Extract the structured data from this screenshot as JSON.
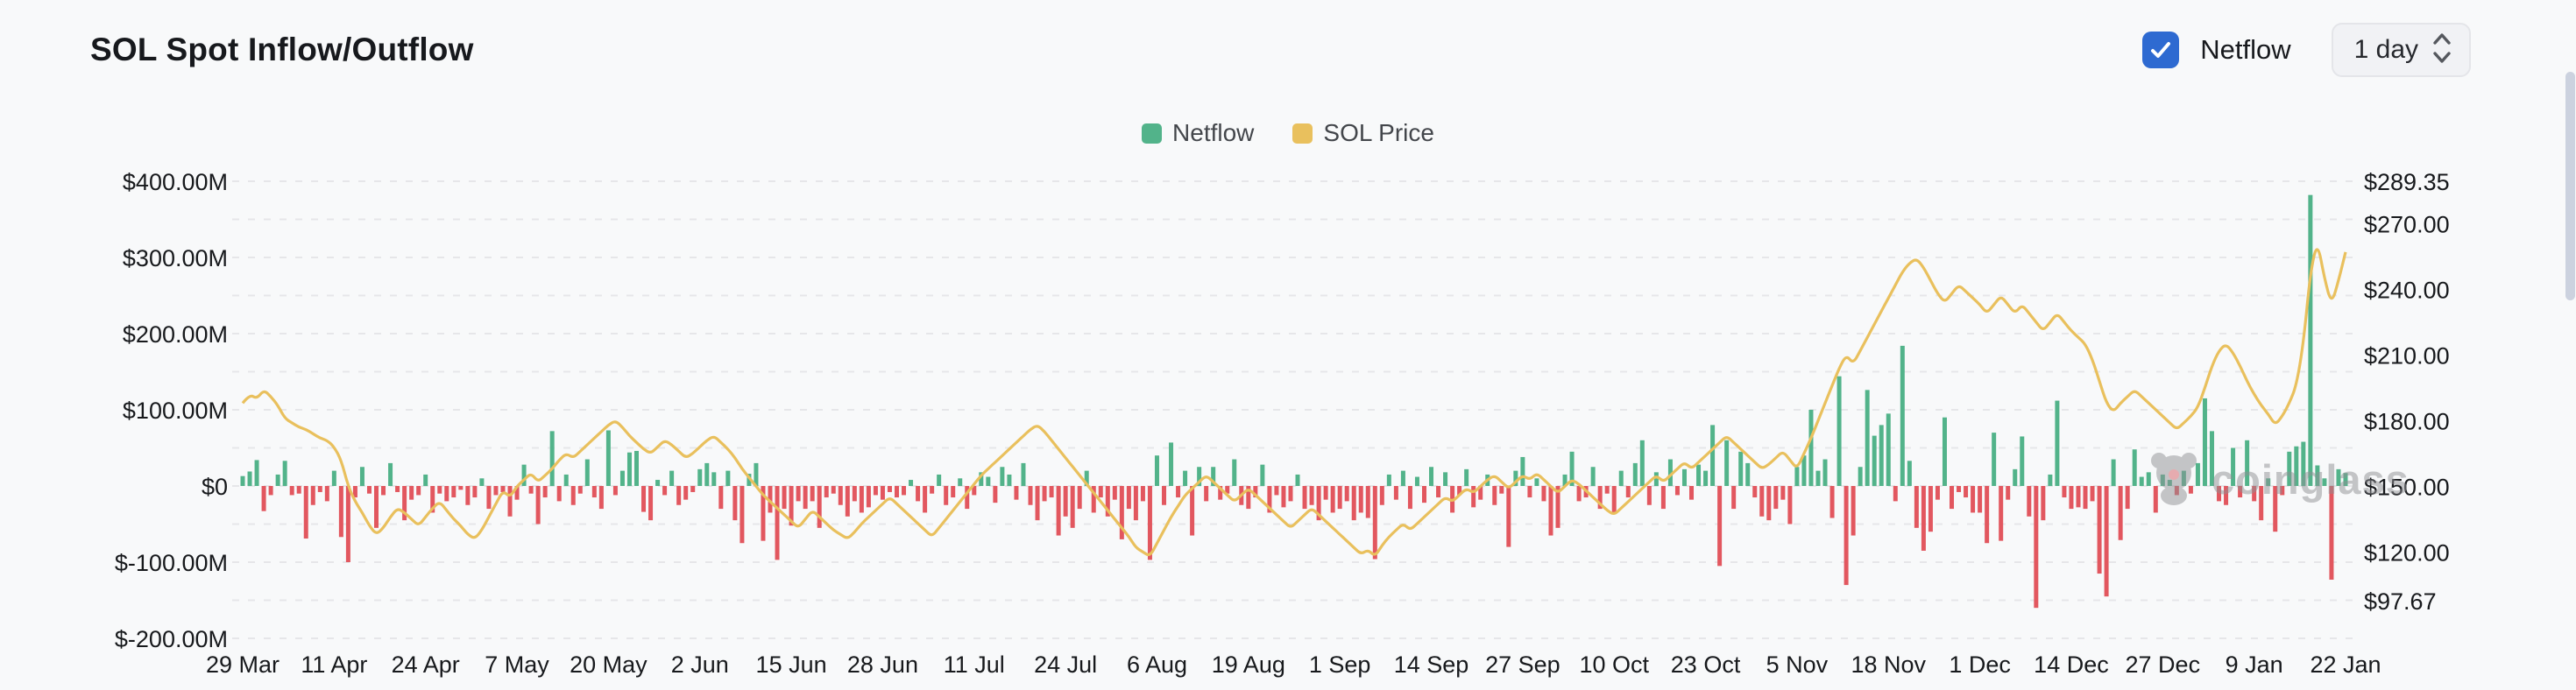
{
  "header": {
    "title": "SOL Spot Inflow/Outflow",
    "netflow_label": "Netflow",
    "netflow_checked": true,
    "interval": "1 day"
  },
  "legend": {
    "items": [
      {
        "label": "Netflow",
        "color": "#52b38a"
      },
      {
        "label": "SOL Price",
        "color": "#e9c05d"
      }
    ]
  },
  "watermark": {
    "text": "coinglass"
  },
  "colors": {
    "bar_positive": "#52b38a",
    "bar_negative": "#e2575f",
    "price_line": "#e9c05d",
    "grid": "#e6e6e9",
    "axis_text": "#17191c",
    "checkbox_blue": "#2e6ad1",
    "scroll_thumb": "#ccd2df"
  },
  "chart_data": {
    "type": "combo",
    "title": "SOL Spot Inflow/Outflow",
    "grid": "dashed-horizontal",
    "legend_position": "top-center",
    "x_tick_labels": [
      "29 Mar",
      "11 Apr",
      "24 Apr",
      "7 May",
      "20 May",
      "2 Jun",
      "15 Jun",
      "28 Jun",
      "11 Jul",
      "24 Jul",
      "6 Aug",
      "19 Aug",
      "1 Sep",
      "14 Sep",
      "27 Sep",
      "10 Oct",
      "23 Oct",
      "5 Nov",
      "18 Nov",
      "1 Dec",
      "14 Dec",
      "27 Dec",
      "9 Jan",
      "22 Jan"
    ],
    "x_tick_day_index": [
      0,
      13,
      26,
      39,
      52,
      65,
      78,
      91,
      104,
      117,
      130,
      143,
      156,
      169,
      182,
      195,
      208,
      221,
      234,
      247,
      260,
      273,
      286,
      299
    ],
    "days_total": 300,
    "left_axis": {
      "tick_labels": [
        "$400.00M",
        "$300.00M",
        "$200.00M",
        "$100.00M",
        "$0",
        "$-100.00M",
        "$-200.00M"
      ],
      "tick_values": [
        400,
        300,
        200,
        100,
        0,
        -100,
        -200
      ],
      "max": 400,
      "min": -200,
      "unit": "$M"
    },
    "right_axis": {
      "tick_labels": [
        "$289.35",
        "$270.00",
        "$240.00",
        "$210.00",
        "$180.00",
        "$150.00",
        "$120.00",
        "$97.67"
      ],
      "tick_values": [
        289.35,
        270,
        240,
        210,
        180,
        150,
        120,
        97.67
      ],
      "top_value": 289.35,
      "unit": "$"
    },
    "series": [
      {
        "name": "Netflow",
        "type": "bar",
        "unit": "$M",
        "values": [
          13,
          19,
          34,
          -33,
          -12,
          15,
          33,
          -12,
          -10,
          -69,
          -25,
          -8,
          -20,
          20,
          -67,
          -100,
          -15,
          25,
          -10,
          -55,
          -12,
          30,
          -8,
          -45,
          -18,
          -12,
          15,
          -35,
          -10,
          -20,
          -15,
          -5,
          -25,
          -15,
          10,
          -30,
          -12,
          -8,
          -40,
          -18,
          28,
          -10,
          -50,
          -15,
          72,
          -20,
          15,
          -25,
          -10,
          35,
          -15,
          -30,
          73,
          -12,
          20,
          44,
          46,
          -34,
          -45,
          8,
          -12,
          20,
          -25,
          -18,
          -8,
          22,
          30,
          18,
          -30,
          20,
          -45,
          -75,
          16,
          30,
          -72,
          -35,
          -97,
          -30,
          -52,
          -20,
          -30,
          -20,
          -55,
          -15,
          -10,
          -25,
          -40,
          -20,
          -35,
          -28,
          -12,
          -18,
          -8,
          -15,
          -12,
          8,
          -20,
          -35,
          -10,
          15,
          -25,
          -15,
          10,
          -30,
          -12,
          18,
          12,
          -22,
          25,
          15,
          -18,
          30,
          -25,
          -45,
          -20,
          -15,
          -65,
          -40,
          -55,
          -30,
          20,
          -35,
          -15,
          -40,
          -18,
          -70,
          -30,
          -45,
          -20,
          -97,
          40,
          -25,
          57,
          -15,
          20,
          -65,
          25,
          -20,
          25,
          -18,
          -10,
          35,
          -25,
          -30,
          -15,
          28,
          -35,
          -12,
          -28,
          -20,
          15,
          -30,
          -25,
          -45,
          -18,
          -35,
          -30,
          -20,
          -45,
          -35,
          -42,
          -96,
          -25,
          15,
          -18,
          20,
          -30,
          12,
          -22,
          25,
          -15,
          18,
          -35,
          -12,
          22,
          -28,
          -18,
          15,
          -25,
          -10,
          -80,
          20,
          38,
          -15,
          10,
          -20,
          -65,
          -55,
          15,
          45,
          -20,
          -15,
          25,
          -30,
          -10,
          -35,
          20,
          -15,
          30,
          60,
          -25,
          18,
          -30,
          35,
          -12,
          22,
          -18,
          28,
          20,
          80,
          -105,
          60,
          -30,
          45,
          30,
          -15,
          -40,
          -45,
          -30,
          -18,
          -50,
          25,
          40,
          100,
          20,
          35,
          -42,
          144,
          -130,
          -65,
          25,
          126,
          66,
          80,
          95,
          -20,
          184,
          33,
          -55,
          -85,
          -60,
          -18,
          90,
          -30,
          -8,
          -15,
          -35,
          -35,
          -75,
          70,
          -72,
          -18,
          22,
          65,
          -40,
          -160,
          -45,
          15,
          112,
          -15,
          -30,
          -28,
          -30,
          -20,
          -115,
          -145,
          35,
          -71,
          -30,
          48,
          12,
          18,
          -35,
          15,
          8,
          -12,
          20,
          -10,
          30,
          115,
          72,
          -20,
          -25,
          50,
          -15,
          60,
          -20,
          -45,
          10,
          -60,
          -12,
          45,
          52,
          58,
          382,
          27,
          10,
          -123,
          22,
          17
        ]
      },
      {
        "name": "SOL Price",
        "type": "line",
        "unit": "$",
        "values": [
          188,
          192,
          190,
          194,
          191,
          187,
          181,
          179,
          177,
          176,
          174,
          172,
          171,
          168,
          162,
          150,
          143,
          138,
          132,
          128,
          131,
          136,
          140,
          138,
          135,
          132,
          136,
          140,
          143,
          139,
          135,
          132,
          128,
          126,
          130,
          136,
          142,
          148,
          145,
          150,
          153,
          156,
          152,
          155,
          158,
          162,
          165,
          163,
          166,
          169,
          172,
          175,
          178,
          180,
          177,
          173,
          170,
          167,
          165,
          168,
          171,
          169,
          166,
          163,
          165,
          168,
          171,
          173,
          170,
          167,
          163,
          158,
          154,
          150,
          146,
          143,
          140,
          137,
          134,
          131,
          135,
          139,
          136,
          133,
          130,
          128,
          126,
          129,
          133,
          136,
          139,
          142,
          145,
          142,
          139,
          136,
          133,
          130,
          127,
          131,
          135,
          139,
          143,
          147,
          151,
          155,
          158,
          161,
          164,
          167,
          170,
          173,
          176,
          178,
          175,
          171,
          167,
          163,
          159,
          155,
          151,
          147,
          143,
          139,
          135,
          131,
          127,
          122,
          120,
          118,
          124,
          130,
          136,
          141,
          146,
          149,
          152,
          155,
          152,
          149,
          146,
          143,
          146,
          149,
          146,
          143,
          140,
          137,
          134,
          131,
          134,
          137,
          140,
          137,
          134,
          131,
          128,
          125,
          122,
          119,
          121,
          118,
          123,
          127,
          130,
          133,
          130,
          133,
          136,
          139,
          142,
          145,
          143,
          146,
          149,
          147,
          150,
          153,
          155,
          152,
          149,
          152,
          155,
          153,
          156,
          153,
          150,
          147,
          150,
          153,
          151,
          148,
          145,
          142,
          139,
          137,
          140,
          143,
          146,
          149,
          152,
          155,
          152,
          155,
          158,
          161,
          158,
          161,
          164,
          167,
          170,
          173,
          170,
          167,
          164,
          161,
          158,
          160,
          163,
          166,
          162,
          158,
          165,
          172,
          180,
          188,
          196,
          204,
          210,
          206,
          212,
          218,
          224,
          230,
          236,
          242,
          248,
          252,
          254,
          250,
          244,
          238,
          234,
          238,
          242,
          239,
          236,
          233,
          229,
          233,
          237,
          233,
          229,
          233,
          229,
          225,
          221,
          225,
          229,
          225,
          221,
          218,
          215,
          208,
          198,
          188,
          184,
          188,
          191,
          194,
          191,
          188,
          185,
          182,
          179,
          176,
          179,
          182,
          186,
          195,
          205,
          212,
          215,
          211,
          205,
          198,
          192,
          187,
          183,
          178,
          182,
          188,
          196,
          215,
          248,
          262,
          245,
          233,
          244,
          257
        ]
      }
    ]
  }
}
